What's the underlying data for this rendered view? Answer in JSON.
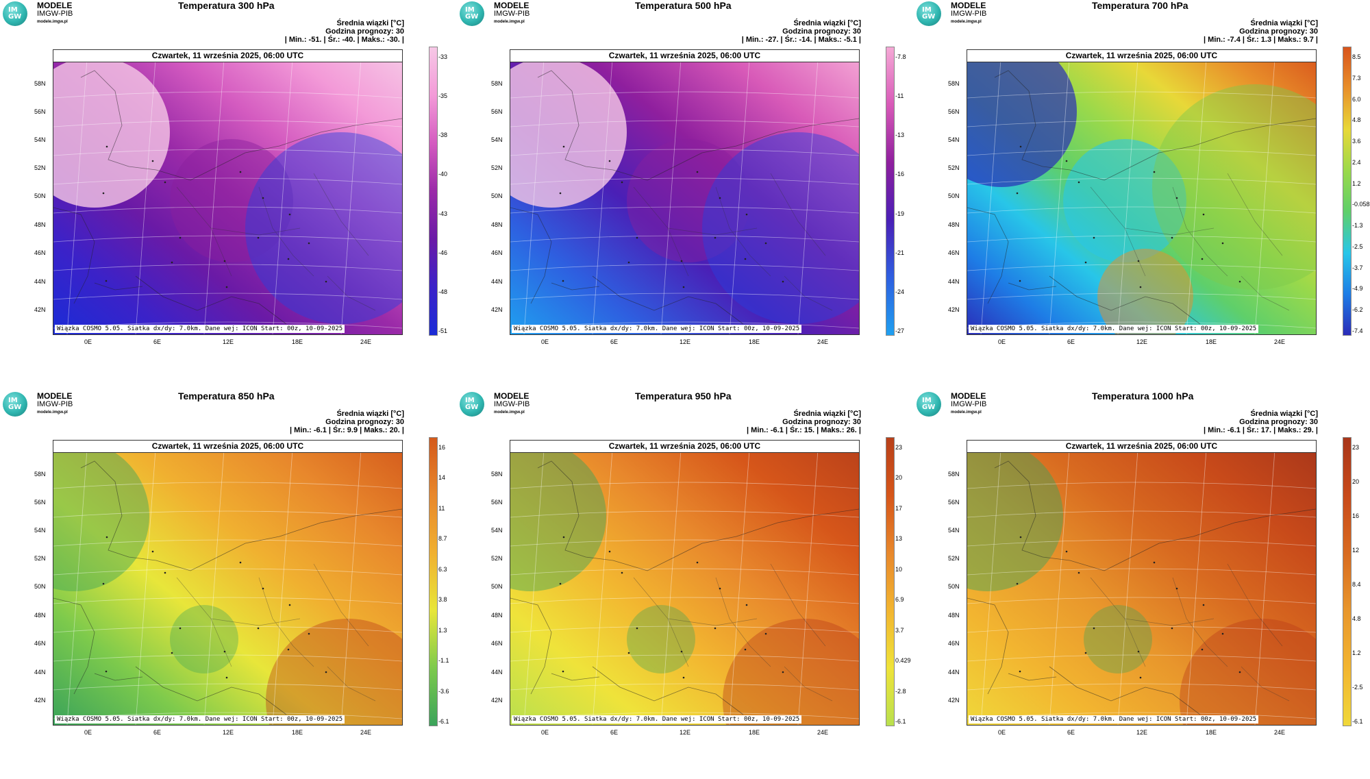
{
  "panels": [
    {
      "title": "Temperatura 300 hPa",
      "stats": "| Min.:   -51. | Śr.:   -40. | Maks.:   -30. |",
      "cb_labels": [
        "-33",
        "-35",
        "-38",
        "-40",
        "-43",
        "-46",
        "-48",
        "-51"
      ],
      "colors": [
        "#1b2cd6",
        "#3b22c8",
        "#6a1aa6",
        "#9a2aa8",
        "#d45bc0",
        "#f39ad8",
        "#f6c8e6"
      ],
      "map_style": "cold"
    },
    {
      "title": "Temperatura 500 hPa",
      "stats": "| Min.:   -27. | Śr.:   -14. | Maks.:   -5.1 |",
      "cb_labels": [
        "-7.8",
        "-11",
        "-13",
        "-16",
        "-19",
        "-21",
        "-24",
        "-27"
      ],
      "colors": [
        "#1fa0f0",
        "#2e5fe0",
        "#4a1fb6",
        "#8f1f9e",
        "#d85ab8",
        "#f5a9d6"
      ],
      "map_style": "cold"
    },
    {
      "title": "Temperatura 700 hPa",
      "stats": "| Min.:   -7.4 | Śr.:   1.3 | Maks.:   9.7 |",
      "cb_labels": [
        "8.5",
        "7.3",
        "6.0",
        "4.8",
        "3.6",
        "2.4",
        "1.2",
        "-0.058",
        "-1.3",
        "-2.5",
        "-3.7",
        "-4.9",
        "-6.2",
        "-7.4"
      ],
      "colors": [
        "#2a2cb8",
        "#1e7de6",
        "#28c6e8",
        "#5fcf6a",
        "#9bd94a",
        "#e8d838",
        "#e88f2a",
        "#d8541c"
      ],
      "map_style": "mid"
    },
    {
      "title": "Temperatura 850 hPa",
      "stats": "| Min.:   -6.1 | Śr.:   9.9 | Maks.:   20. |",
      "cb_labels": [
        "16",
        "14",
        "11",
        "8.7",
        "6.3",
        "3.8",
        "1.3",
        "-1.1",
        "-3.6",
        "-6.1"
      ],
      "colors": [
        "#3aa35a",
        "#7dca4c",
        "#e8e63a",
        "#f0b030",
        "#e8882c",
        "#d45a1c"
      ],
      "map_style": "warm"
    },
    {
      "title": "Temperatura 950 hPa",
      "stats": "| Min.:   -6.1 | Śr.:   15. | Maks.:   26. |",
      "cb_labels": [
        "23",
        "20",
        "17",
        "13",
        "10",
        "6.9",
        "3.7",
        "0.429",
        "-2.8",
        "-6.1"
      ],
      "colors": [
        "#b9e04e",
        "#efe33a",
        "#f2b530",
        "#e8882c",
        "#d6561a",
        "#b8401a"
      ],
      "map_style": "warm"
    },
    {
      "title": "Temperatura 1000 hPa",
      "stats": "| Min.:   -6.1 | Śr.:   17. | Maks.:   29. |",
      "cb_labels": [
        "23",
        "20",
        "16",
        "12",
        "8.4",
        "4.8",
        "1.2",
        "-2.5",
        "-6.1"
      ],
      "colors": [
        "#f0d83a",
        "#f2b530",
        "#e8962c",
        "#d86a20",
        "#c84a1a",
        "#a8361a"
      ],
      "map_style": "warm"
    }
  ],
  "common": {
    "brand_line1": "MODELE",
    "brand_line2": "IMGW-PIB",
    "brand_line3": "modele.imgw.pl",
    "logo_text": "IM GW",
    "subtitle1": "Średnia wiązki [°C]",
    "subtitle2": "Godzina prognozy: 30",
    "date": "Czwartek, 11 września 2025, 06:00 UTC",
    "footer": "Wiązka COSMO 5.05. Siatka dx/dy: 7.0km. Dane wej: ICON Start: 00z, 10-09-2025",
    "lat_labels": [
      "58N",
      "56N",
      "54N",
      "52N",
      "50N",
      "48N",
      "46N",
      "44N",
      "42N"
    ],
    "lon_labels": [
      "0E",
      "6E",
      "12E",
      "18E",
      "24E"
    ]
  }
}
